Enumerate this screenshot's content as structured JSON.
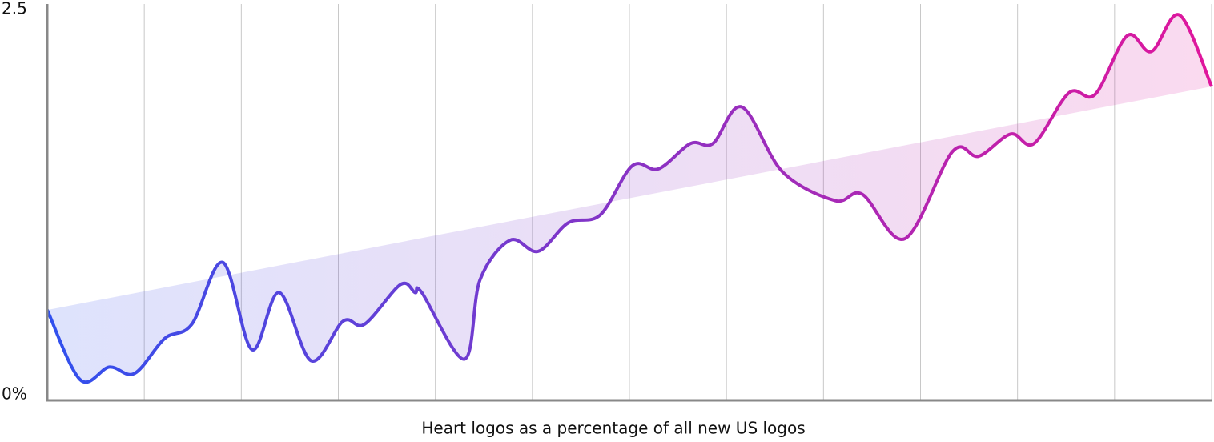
{
  "chart_data": {
    "type": "line",
    "caption": "Heart logos as a percentage of all new US logos",
    "x": [
      0,
      0.34,
      0.64,
      0.9,
      1.21,
      1.49,
      1.81,
      2.11,
      2.39,
      2.72,
      3.05,
      3.27,
      3.64,
      3.79,
      3.86,
      4.3,
      4.46,
      4.77,
      5.06,
      5.37,
      5.7,
      6.03,
      6.3,
      6.63,
      6.86,
      7.16,
      7.58,
      8.12,
      8.4,
      8.84,
      9.33,
      9.6,
      9.93,
      10.17,
      10.53,
      10.8,
      11.13,
      11.38,
      11.67,
      12
    ],
    "values": [
      0.57,
      0.13,
      0.21,
      0.17,
      0.39,
      0.48,
      0.87,
      0.32,
      0.68,
      0.25,
      0.5,
      0.48,
      0.73,
      0.68,
      0.68,
      0.26,
      0.76,
      1.01,
      0.94,
      1.12,
      1.17,
      1.48,
      1.46,
      1.62,
      1.62,
      1.85,
      1.44,
      1.26,
      1.3,
      1.02,
      1.57,
      1.54,
      1.68,
      1.62,
      1.94,
      1.93,
      2.3,
      2.2,
      2.43,
      1.98
    ],
    "trend": [
      0.57,
      1.98
    ],
    "colors": [
      "#3050ee",
      "#e0169c"
    ],
    "xlim": [
      0,
      12
    ],
    "xticks": [
      1,
      2,
      3,
      4,
      5,
      6,
      7,
      8,
      9,
      10,
      11,
      12
    ],
    "ylim": [
      0,
      2.5
    ],
    "yticks": [
      {
        "value": 0,
        "label": "0%"
      },
      2.5
    ],
    "grid": true
  }
}
